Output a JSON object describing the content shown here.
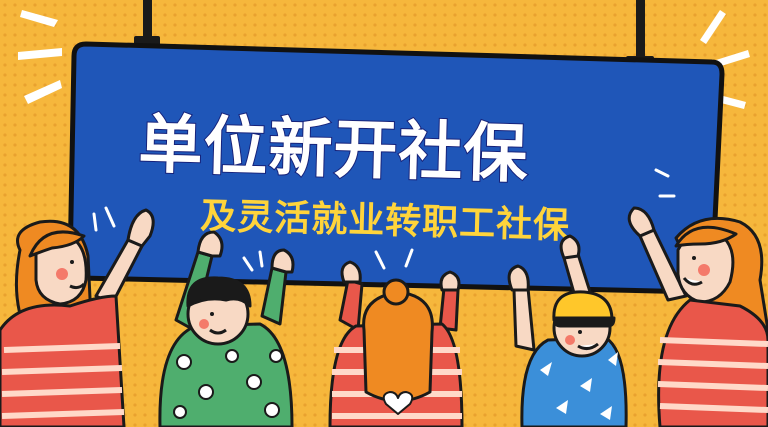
{
  "banner": {
    "title": "单位新开社保",
    "subtitle": "及灵活就业转职工社保"
  },
  "colors": {
    "background": "#f6b73c",
    "board": "#1f56b8",
    "board_border": "#111111",
    "title": "#ffffff",
    "subtitle": "#ffd43b"
  },
  "characters": [
    {
      "name": "woman-left-orange-hair"
    },
    {
      "name": "boy-green-sweater"
    },
    {
      "name": "girl-striped-back-view"
    },
    {
      "name": "boy-yellow-cap"
    },
    {
      "name": "woman-right-orange-hair"
    }
  ]
}
